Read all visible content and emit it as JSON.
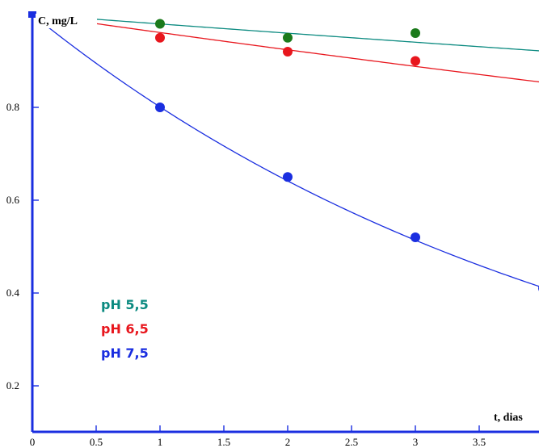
{
  "chart_data": {
    "type": "scatter",
    "x_axis": {
      "label": "t, dias",
      "range": [
        0,
        4.0
      ],
      "ticks": [
        0,
        0.5,
        1,
        1.5,
        2,
        2.5,
        3,
        3.5
      ],
      "tick_labels": [
        "0",
        "0.5",
        "1",
        "1.5",
        "2",
        "2.5",
        "3",
        "3.5"
      ]
    },
    "y_axis": {
      "label": "C, mg/L",
      "range": [
        0.09,
        1.0
      ],
      "ticks": [
        0.2,
        0.4,
        0.6,
        0.8
      ],
      "tick_labels": [
        "0.2",
        "0.4",
        "0.6",
        "0.8"
      ]
    },
    "grid": false,
    "legend_placement": "bottom-left",
    "series": [
      {
        "name": "pH 5,5",
        "color": "#0b8a80",
        "marker_color": "#1b7a1b",
        "x": [
          0,
          1,
          2,
          3
        ],
        "y": [
          1.0,
          0.98,
          0.95,
          0.96
        ],
        "fit": {
          "model": "exponential",
          "c0": 1.0,
          "k": 0.0205
        }
      },
      {
        "name": "pH 6,5",
        "color": "#e8161d",
        "marker_color": "#e8161d",
        "x": [
          0,
          1,
          2,
          3
        ],
        "y": [
          1.0,
          0.95,
          0.92,
          0.9
        ],
        "fit": {
          "model": "exponential",
          "c0": 1.0,
          "k": 0.0395
        }
      },
      {
        "name": "pH 7,5",
        "color": "#1a2ee0",
        "marker_color": "#1a2ee0",
        "x": [
          0,
          1,
          2,
          3,
          4
        ],
        "y": [
          1.0,
          0.8,
          0.65,
          0.52,
          0.41
        ],
        "fit": {
          "model": "exponential",
          "c0": 1.0,
          "k": 0.222
        }
      }
    ]
  }
}
